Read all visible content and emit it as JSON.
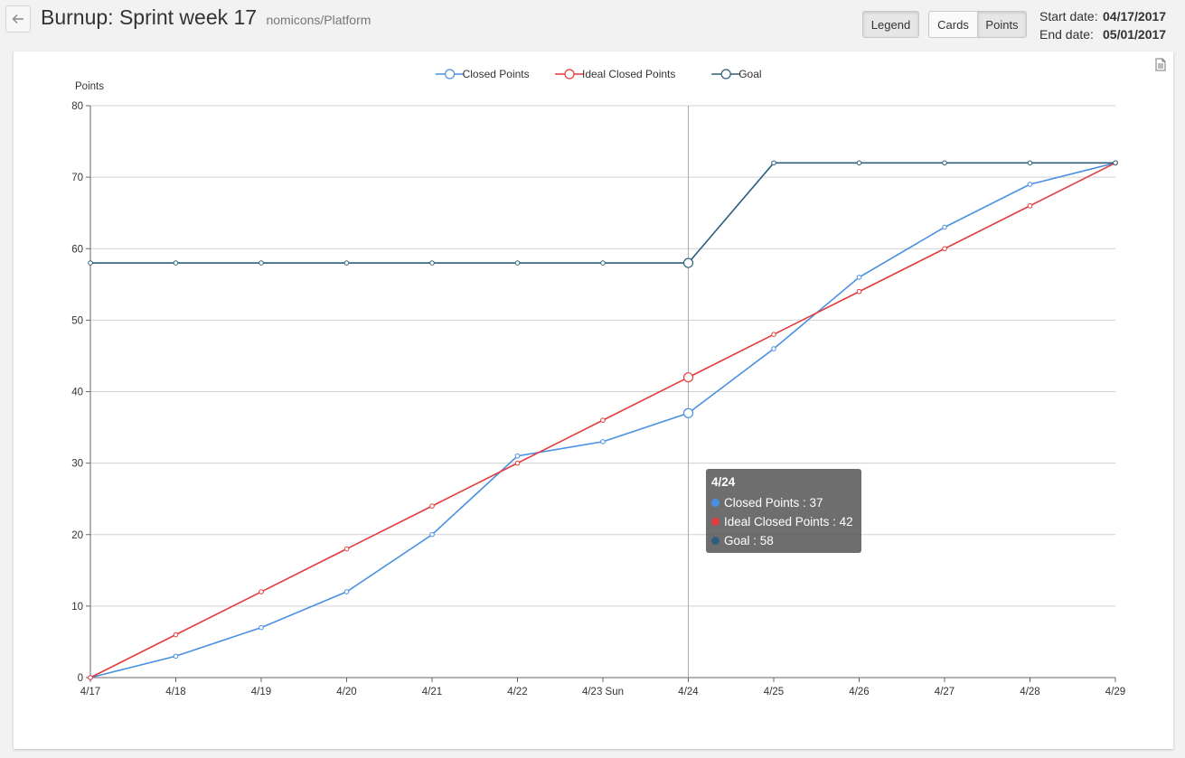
{
  "header": {
    "back_icon": "arrow-left-icon",
    "title": "Burnup: Sprint week 17",
    "subtitle": "nomicons/Platform",
    "legend_label": "Legend",
    "cards_label": "Cards",
    "points_label": "Points",
    "start_label": "Start date:",
    "start_value": "04/17/2017",
    "end_label": "End date:",
    "end_value": "05/01/2017"
  },
  "export_icon": "document-icon",
  "tooltip": {
    "title": "4/24",
    "rows": [
      {
        "label": "Closed Points : 37",
        "color": "#4a90e2"
      },
      {
        "label": "Ideal Closed Points : 42",
        "color": "#e23c3c"
      },
      {
        "label": "Goal : 58",
        "color": "#2c5f7c"
      }
    ]
  },
  "chart_data": {
    "type": "line",
    "ylabel": "Points",
    "ylim": [
      0,
      80
    ],
    "yticks": [
      0,
      10,
      20,
      30,
      40,
      50,
      60,
      70,
      80
    ],
    "grid": true,
    "legend_position": "top-center",
    "categories": [
      "4/17",
      "4/18",
      "4/19",
      "4/20",
      "4/21",
      "4/22",
      "4/23 Sun",
      "4/24",
      "4/25",
      "4/26",
      "4/27",
      "4/28",
      "4/29"
    ],
    "highlight_index": 7,
    "series": [
      {
        "name": "Closed Points",
        "color": "#4a90e2",
        "values": [
          0,
          3,
          7,
          12,
          20,
          31,
          33,
          37,
          46,
          56,
          63,
          69,
          72
        ]
      },
      {
        "name": "Ideal Closed Points",
        "color": "#e23c3c",
        "values": [
          0,
          6,
          12,
          18,
          24,
          30,
          36,
          42,
          48,
          54,
          60,
          66,
          72
        ]
      },
      {
        "name": "Goal",
        "color": "#2c5f7c",
        "values": [
          58,
          58,
          58,
          58,
          58,
          58,
          58,
          58,
          72,
          72,
          72,
          72,
          72
        ]
      }
    ]
  }
}
